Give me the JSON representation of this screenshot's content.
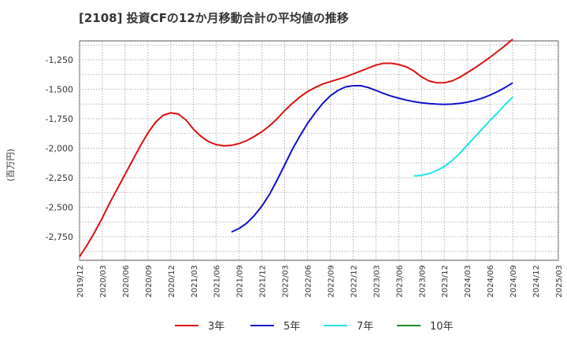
{
  "chart_data": {
    "type": "line",
    "title": "[2108]  投資CFの12か月移動合計の平均値の推移",
    "ylabel": "(百万円)",
    "xlabel": "",
    "ylim": [
      -2950,
      -1090
    ],
    "grid": true,
    "legend_position": "bottom",
    "y_ticks": [
      -1250,
      -1500,
      -1750,
      -2000,
      -2250,
      -2500,
      -2750
    ],
    "y_tick_labels": [
      "-1,250",
      "-1,500",
      "-1,750",
      "-2,000",
      "-2,250",
      "-2,500",
      "-2,750"
    ],
    "x_tick_labels": [
      "2019/12",
      "2020/03",
      "2020/06",
      "2020/09",
      "2020/12",
      "2021/03",
      "2021/06",
      "2021/09",
      "2021/12",
      "2022/03",
      "2022/06",
      "2022/09",
      "2022/12",
      "2023/03",
      "2023/06",
      "2023/09",
      "2023/12",
      "2024/03",
      "2024/06",
      "2024/09",
      "2024/12",
      "2025/03"
    ],
    "series": [
      {
        "name": "3年",
        "color": "#dd1111",
        "x": [
          "2019/12",
          "2020/01",
          "2020/02",
          "2020/03",
          "2020/04",
          "2020/05",
          "2020/06",
          "2020/07",
          "2020/08",
          "2020/09",
          "2020/10",
          "2020/11",
          "2020/12",
          "2021/01",
          "2021/02",
          "2021/03",
          "2021/04",
          "2021/05",
          "2021/06",
          "2021/07",
          "2021/08",
          "2021/09",
          "2021/10",
          "2021/11",
          "2021/12",
          "2022/01",
          "2022/02",
          "2022/03",
          "2022/04",
          "2022/05",
          "2022/06",
          "2022/07",
          "2022/08",
          "2022/09",
          "2022/10",
          "2022/11",
          "2022/12",
          "2023/01",
          "2023/02",
          "2023/03",
          "2023/04",
          "2023/05",
          "2023/06",
          "2023/07",
          "2023/08",
          "2023/09",
          "2023/10",
          "2023/11",
          "2023/12",
          "2024/01",
          "2024/02",
          "2024/03",
          "2024/04",
          "2024/05",
          "2024/06",
          "2024/07",
          "2024/08",
          "2024/09"
        ],
        "values": [
          -2920,
          -2820,
          -2710,
          -2590,
          -2460,
          -2340,
          -2220,
          -2100,
          -1980,
          -1870,
          -1780,
          -1720,
          -1700,
          -1710,
          -1760,
          -1840,
          -1900,
          -1945,
          -1970,
          -1980,
          -1975,
          -1960,
          -1935,
          -1900,
          -1860,
          -1810,
          -1750,
          -1680,
          -1620,
          -1565,
          -1520,
          -1485,
          -1455,
          -1435,
          -1415,
          -1395,
          -1370,
          -1345,
          -1320,
          -1295,
          -1280,
          -1280,
          -1290,
          -1310,
          -1345,
          -1395,
          -1430,
          -1445,
          -1445,
          -1430,
          -1400,
          -1360,
          -1320,
          -1275,
          -1230,
          -1180,
          -1130,
          -1075
        ]
      },
      {
        "name": "5年",
        "color": "#1111cc",
        "x": [
          "2021/08",
          "2021/09",
          "2021/10",
          "2021/11",
          "2021/12",
          "2022/01",
          "2022/02",
          "2022/03",
          "2022/04",
          "2022/05",
          "2022/06",
          "2022/07",
          "2022/08",
          "2022/09",
          "2022/10",
          "2022/11",
          "2022/12",
          "2023/01",
          "2023/02",
          "2023/03",
          "2023/04",
          "2023/05",
          "2023/06",
          "2023/07",
          "2023/08",
          "2023/09",
          "2023/10",
          "2023/11",
          "2023/12",
          "2024/01",
          "2024/02",
          "2024/03",
          "2024/04",
          "2024/05",
          "2024/06",
          "2024/07",
          "2024/08",
          "2024/09"
        ],
        "values": [
          -2710,
          -2680,
          -2635,
          -2570,
          -2490,
          -2390,
          -2270,
          -2140,
          -2010,
          -1895,
          -1790,
          -1700,
          -1620,
          -1555,
          -1510,
          -1480,
          -1470,
          -1470,
          -1485,
          -1510,
          -1535,
          -1558,
          -1576,
          -1592,
          -1605,
          -1615,
          -1622,
          -1626,
          -1628,
          -1626,
          -1620,
          -1610,
          -1595,
          -1575,
          -1550,
          -1520,
          -1485,
          -1445
        ]
      },
      {
        "name": "7年",
        "color": "#22e5e5",
        "x": [
          "2023/08",
          "2023/09",
          "2023/10",
          "2023/11",
          "2023/12",
          "2024/01",
          "2024/02",
          "2024/03",
          "2024/04",
          "2024/05",
          "2024/06",
          "2024/07",
          "2024/08",
          "2024/09"
        ],
        "values": [
          -2235,
          -2230,
          -2215,
          -2190,
          -2155,
          -2105,
          -2045,
          -1975,
          -1905,
          -1835,
          -1765,
          -1700,
          -1630,
          -1565
        ]
      },
      {
        "name": "10年",
        "color": "#228822",
        "x": [],
        "values": []
      }
    ]
  }
}
